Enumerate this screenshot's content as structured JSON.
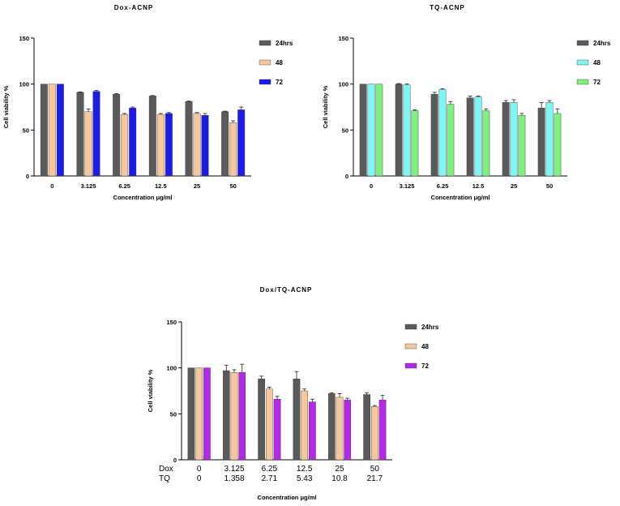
{
  "chart_data": [
    {
      "type": "bar",
      "title": "Dox-ACNP",
      "xlabel": "Concentration μg/ml",
      "ylabel": "Cell viability %",
      "ylim": [
        0,
        150
      ],
      "yticks": [
        0,
        50,
        100,
        150
      ],
      "categories": [
        "0",
        "3.125",
        "6.25",
        "12.5",
        "25",
        "50"
      ],
      "series": [
        {
          "name": "24hrs",
          "color": "#5a5a5a",
          "values": [
            100,
            91,
            89,
            87,
            81,
            70
          ],
          "errors": [
            0,
            0.5,
            0.5,
            0.5,
            0.5,
            0.5
          ]
        },
        {
          "name": "48",
          "color": "#f7c79c",
          "values": [
            100,
            70,
            67,
            67,
            68,
            58
          ],
          "errors": [
            0,
            3,
            1,
            1,
            1,
            2
          ]
        },
        {
          "name": "72",
          "color": "#1b1bea",
          "values": [
            100,
            92,
            74,
            68,
            66,
            72
          ],
          "errors": [
            0,
            1,
            1,
            1,
            2,
            3
          ]
        }
      ]
    },
    {
      "type": "bar",
      "title": "TQ-ACNP",
      "xlabel": "Concentration μg/ml",
      "ylabel": "Cell viability %",
      "ylim": [
        0,
        150
      ],
      "yticks": [
        0,
        50,
        100,
        150
      ],
      "categories": [
        "0",
        "3.125",
        "6.25",
        "12.5",
        "25",
        "50"
      ],
      "series": [
        {
          "name": "24hrs",
          "color": "#5a5a5a",
          "values": [
            100,
            100,
            89,
            85,
            80,
            74
          ],
          "errors": [
            0,
            0.5,
            2,
            2,
            2,
            6
          ]
        },
        {
          "name": "48",
          "color": "#7ff5f5",
          "values": [
            100,
            99,
            94,
            86,
            80,
            80
          ],
          "errors": [
            0,
            1,
            1,
            1,
            3,
            2
          ]
        },
        {
          "name": "72",
          "color": "#7ff07f",
          "values": [
            100,
            71,
            78,
            71,
            66,
            68
          ],
          "errors": [
            0,
            1,
            3,
            2,
            2,
            5
          ]
        }
      ]
    },
    {
      "type": "bar",
      "title": "Dox/TQ-ACNP",
      "xlabel": "Concentration μg/ml",
      "ylabel": "Cell viability %",
      "ylim": [
        0,
        150
      ],
      "yticks": [
        0,
        50,
        100,
        150
      ],
      "categories": [
        "0",
        "3.125",
        "6.25",
        "12.5",
        "25",
        "50"
      ],
      "row_labels": [
        {
          "label": "Dox",
          "values": [
            "0",
            "3.125",
            "6.25",
            "12.5",
            "25",
            "50"
          ]
        },
        {
          "label": "TQ",
          "values": [
            "0",
            "1.358",
            "2.71",
            "5.43",
            "10.8",
            "21.7"
          ]
        }
      ],
      "series": [
        {
          "name": "24hrs",
          "color": "#5a5a5a",
          "values": [
            100,
            97,
            88,
            88,
            72,
            71
          ],
          "errors": [
            0,
            6,
            3,
            8,
            1,
            2
          ]
        },
        {
          "name": "48",
          "color": "#f7c79c",
          "values": [
            100,
            95,
            77,
            75,
            68,
            58
          ],
          "errors": [
            0,
            3,
            2,
            2,
            4,
            1
          ]
        },
        {
          "name": "72",
          "color": "#b429e8",
          "values": [
            100,
            95,
            66,
            63,
            65,
            65
          ],
          "errors": [
            0,
            9,
            3,
            3,
            2,
            5
          ]
        }
      ]
    }
  ]
}
